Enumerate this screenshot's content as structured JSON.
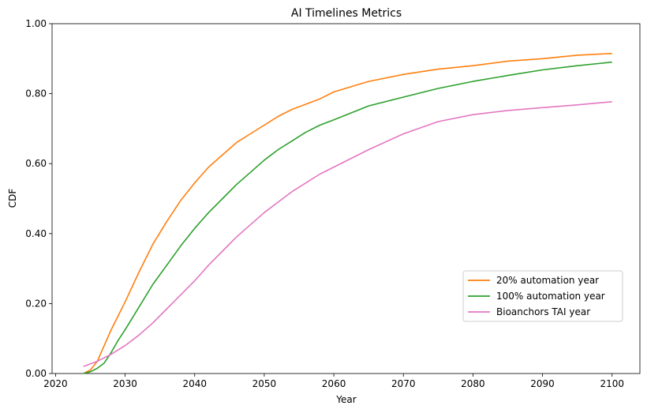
{
  "chart_data": {
    "type": "line",
    "title": "AI Timelines Metrics",
    "xlabel": "Year",
    "ylabel": "CDF",
    "xlim": [
      2019.5,
      2104
    ],
    "ylim": [
      0,
      1
    ],
    "xticks": [
      2020,
      2030,
      2040,
      2050,
      2060,
      2070,
      2080,
      2090,
      2100
    ],
    "yticks": [
      0,
      0.2,
      0.4,
      0.6,
      0.8,
      1.0
    ],
    "ytick_labels": [
      "0.00",
      "0.20",
      "0.40",
      "0.60",
      "0.80",
      "1.00"
    ],
    "grid": false,
    "legend_position": "lower-right",
    "series": [
      {
        "name": "20% automation year",
        "color": "#ff7f0e",
        "x": [
          2024,
          2025,
          2026,
          2027,
          2028,
          2029,
          2030,
          2032,
          2034,
          2036,
          2038,
          2040,
          2042,
          2044,
          2046,
          2048,
          2050,
          2052,
          2054,
          2056,
          2058,
          2060,
          2065,
          2070,
          2075,
          2080,
          2085,
          2090,
          2095,
          2100
        ],
        "y": [
          0.0,
          0.01,
          0.035,
          0.08,
          0.125,
          0.165,
          0.205,
          0.29,
          0.37,
          0.435,
          0.495,
          0.545,
          0.59,
          0.625,
          0.66,
          0.685,
          0.71,
          0.735,
          0.755,
          0.77,
          0.785,
          0.805,
          0.835,
          0.855,
          0.87,
          0.88,
          0.893,
          0.9,
          0.91,
          0.915
        ]
      },
      {
        "name": "100% automation year",
        "color": "#2ca02c",
        "x": [
          2024,
          2025,
          2026,
          2027,
          2028,
          2029,
          2030,
          2032,
          2034,
          2036,
          2038,
          2040,
          2042,
          2044,
          2046,
          2048,
          2050,
          2052,
          2054,
          2056,
          2058,
          2060,
          2065,
          2070,
          2075,
          2080,
          2085,
          2090,
          2095,
          2100
        ],
        "y": [
          0.0,
          0.005,
          0.015,
          0.03,
          0.06,
          0.095,
          0.125,
          0.19,
          0.255,
          0.31,
          0.365,
          0.415,
          0.46,
          0.5,
          0.54,
          0.575,
          0.61,
          0.64,
          0.665,
          0.69,
          0.71,
          0.725,
          0.765,
          0.79,
          0.815,
          0.835,
          0.852,
          0.868,
          0.88,
          0.89
        ]
      },
      {
        "name": "Bioanchors TAI year",
        "color": "#e377c2",
        "x": [
          2024,
          2026,
          2028,
          2030,
          2032,
          2034,
          2036,
          2038,
          2040,
          2042,
          2044,
          2046,
          2048,
          2050,
          2052,
          2054,
          2056,
          2058,
          2060,
          2065,
          2070,
          2075,
          2080,
          2085,
          2090,
          2095,
          2100
        ],
        "y": [
          0.02,
          0.035,
          0.055,
          0.08,
          0.11,
          0.145,
          0.185,
          0.225,
          0.265,
          0.31,
          0.35,
          0.39,
          0.425,
          0.46,
          0.49,
          0.52,
          0.545,
          0.57,
          0.59,
          0.64,
          0.685,
          0.72,
          0.74,
          0.752,
          0.76,
          0.768,
          0.777
        ]
      }
    ]
  }
}
